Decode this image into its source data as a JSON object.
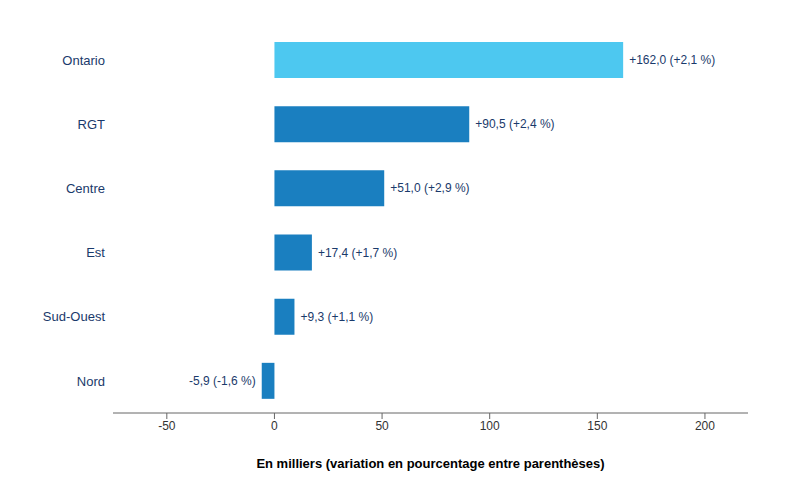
{
  "chart_data": {
    "type": "bar",
    "orientation": "horizontal",
    "categories": [
      "Ontario",
      "RGT",
      "Centre",
      "Est",
      "Sud-Ouest",
      "Nord"
    ],
    "values": [
      162.0,
      90.5,
      51.0,
      17.4,
      9.3,
      -5.9
    ],
    "value_labels": [
      "+162,0 (+2,1 %)",
      "+90,5 (+2,4 %)",
      "+51,0 (+2,9 %)",
      "+17,4 (+1,7 %)",
      "+9,3 (+1,1 %)",
      "-5,9 (-1,6 %)"
    ],
    "colors": [
      "#4dc8f0",
      "#1a7fc0",
      "#1a7fc0",
      "#1a7fc0",
      "#1a7fc0",
      "#1a7fc0"
    ],
    "xlabel": "En milliers (variation en pourcentage entre parenthèses)",
    "xlim": [
      -75,
      220
    ],
    "xticks": [
      -50,
      0,
      50,
      100,
      150,
      200
    ],
    "grid": false,
    "data_labels": true
  }
}
